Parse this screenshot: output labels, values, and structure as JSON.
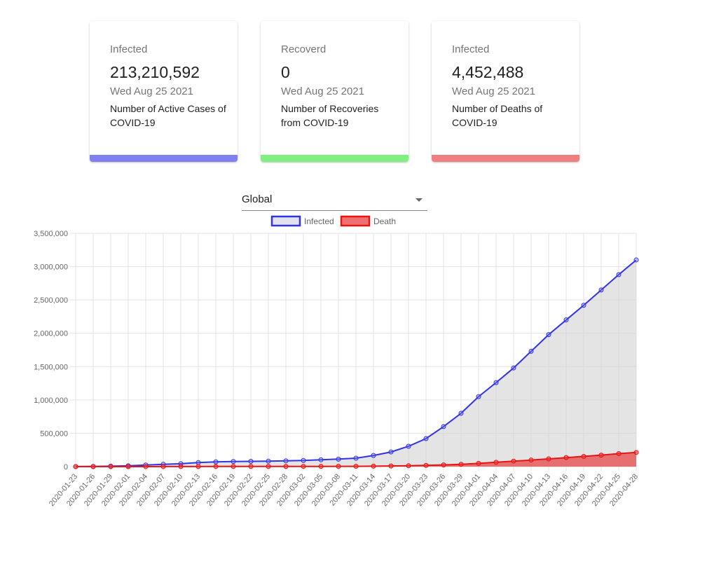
{
  "cards": [
    {
      "label": "Infected",
      "value": "213,210,592",
      "date": "Wed Aug 25 2021",
      "description": "Number of Active Cases of COVID-19",
      "bar_color": "#8080f0"
    },
    {
      "label": "Recoverd",
      "value": "0",
      "date": "Wed Aug 25 2021",
      "description": "Number of Recoveries from COVID-19",
      "bar_color": "#80f080"
    },
    {
      "label": "Infected",
      "value": "4,452,488",
      "date": "Wed Aug 25 2021",
      "description": "Number of Deaths of COVID-19",
      "bar_color": "#f08080"
    }
  ],
  "selector": {
    "value": "Global"
  },
  "chart_data": {
    "type": "line",
    "title": "",
    "xlabel": "",
    "ylabel": "",
    "ylim": [
      0,
      3500000
    ],
    "yticks": [
      0,
      500000,
      1000000,
      1500000,
      2000000,
      2500000,
      3000000,
      3500000
    ],
    "ytick_labels": [
      "0",
      "500,000",
      "1,000,000",
      "1,500,000",
      "2,000,000",
      "2,500,000",
      "3,000,000",
      "3,500,000"
    ],
    "grid": true,
    "legend_position": "top-center",
    "categories": [
      "2020-01-23",
      "2020-01-26",
      "2020-01-29",
      "2020-02-01",
      "2020-02-04",
      "2020-02-07",
      "2020-02-10",
      "2020-02-13",
      "2020-02-16",
      "2020-02-19",
      "2020-02-22",
      "2020-02-25",
      "2020-02-28",
      "2020-03-02",
      "2020-03-05",
      "2020-03-08",
      "2020-03-11",
      "2020-03-14",
      "2020-03-17",
      "2020-03-20",
      "2020-03-23",
      "2020-03-26",
      "2020-03-29",
      "2020-04-01",
      "2020-04-04",
      "2020-04-07",
      "2020-04-10",
      "2020-04-13",
      "2020-04-16",
      "2020-04-19",
      "2020-04-22",
      "2020-04-25",
      "2020-04-28"
    ],
    "series": [
      {
        "name": "Infected",
        "color": "#3232e6",
        "fill": "rgba(210,210,210,0.6)",
        "values": [
          600,
          2900,
          6200,
          12000,
          24000,
          35000,
          43000,
          60000,
          71000,
          76000,
          79000,
          81000,
          86000,
          92000,
          102000,
          112000,
          126000,
          167000,
          220000,
          305000,
          420000,
          600000,
          800000,
          1050000,
          1260000,
          1480000,
          1730000,
          1980000,
          2200000,
          2420000,
          2650000,
          2880000,
          3100000
        ]
      },
      {
        "name": "Death",
        "color": "#e61414",
        "fill": "rgba(230,90,90,0.85)",
        "values": [
          17,
          56,
          133,
          259,
          427,
          638,
          1018,
          1370,
          1770,
          2130,
          2460,
          2710,
          2920,
          3180,
          3460,
          3990,
          4640,
          6500,
          9000,
          12500,
          18000,
          25000,
          34000,
          48000,
          65000,
          82000,
          98000,
          116000,
          135000,
          153000,
          172000,
          194000,
          212000
        ]
      }
    ]
  }
}
